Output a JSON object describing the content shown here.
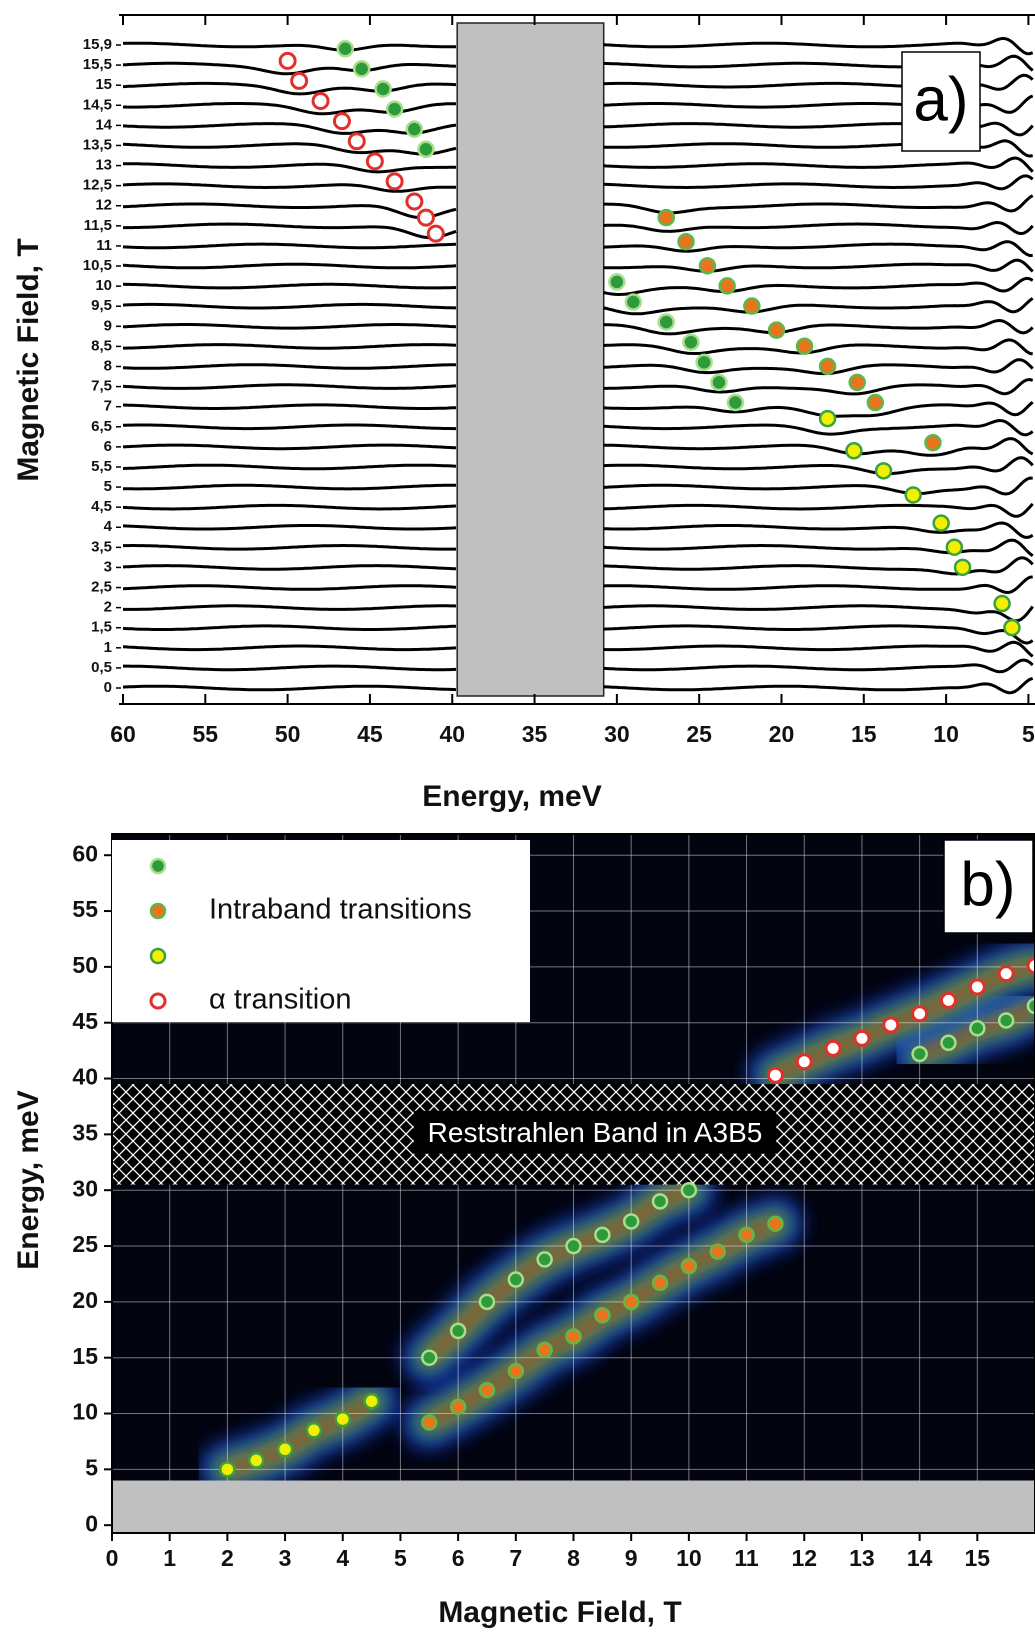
{
  "chart_data": [
    {
      "type": "waterfall",
      "annotation": "a)",
      "xlabel": "Energy, meV",
      "ylabel": "Magnetic Field, T",
      "categories": [
        "0",
        "0,5",
        "1",
        "1,5",
        "2",
        "2,5",
        "3",
        "3,5",
        "4",
        "4,5",
        "5",
        "5,5",
        "6",
        "6,5",
        "7",
        "7,5",
        "8",
        "8,5",
        "9",
        "9,5",
        "10",
        "10,5",
        "11",
        "11,5",
        "12",
        "12,5",
        "13",
        "13,5",
        "14",
        "14,5",
        "15",
        "15,5",
        "15,9"
      ],
      "xlim": [
        60,
        4.6
      ],
      "xticks": [
        60,
        55,
        50,
        45,
        40,
        35,
        30,
        25,
        20,
        15,
        10,
        5
      ],
      "ylim": [
        -0.4,
        16.74
      ],
      "gap": [
        39.7,
        30.8
      ],
      "series": [
        {
          "color": "#2e9a3c",
          "edge": "#a6e08c",
          "marker": "filled",
          "x": [
            46.5,
            45.5,
            44.2,
            43.5,
            42.3,
            41.6,
            30,
            29,
            27,
            25.5,
            24.7,
            23.8,
            22.8
          ],
          "values": [
            15.9,
            15.4,
            14.9,
            14.4,
            13.9,
            13.4,
            10.1,
            9.6,
            9.1,
            8.6,
            8.1,
            7.6,
            7.1
          ]
        },
        {
          "color": "#e8741e",
          "edge": "#5cb84a",
          "marker": "filled",
          "x": [
            27,
            25.8,
            24.5,
            23.3,
            21.8,
            20.3,
            18.6,
            17.2,
            15.4,
            14.3,
            10.8
          ],
          "values": [
            11.7,
            11.1,
            10.5,
            10,
            9.5,
            8.9,
            8.5,
            8,
            7.6,
            7.1,
            6.1
          ]
        },
        {
          "color": "#f2f000",
          "edge": "#3aa040",
          "marker": "filled",
          "x": [
            17.2,
            15.6,
            13.8,
            12,
            10.3,
            9.5,
            9,
            6.6,
            6
          ],
          "values": [
            6.7,
            5.9,
            5.4,
            4.8,
            4.1,
            3.5,
            3,
            2.1,
            1.5
          ]
        },
        {
          "color": "#ffffff",
          "edge": "#e0302a",
          "marker": "open",
          "x": [
            50,
            49.3,
            48,
            46.7,
            45.8,
            44.7,
            43.5,
            42.3,
            41.6,
            41
          ],
          "values": [
            15.6,
            15.1,
            14.6,
            14.1,
            13.6,
            13.1,
            12.6,
            12.1,
            11.7,
            11.3
          ]
        }
      ]
    },
    {
      "type": "scatter",
      "annotation": "b)",
      "xlabel": "Magnetic Field, T",
      "ylabel": "Energy, meV",
      "xlim": [
        0,
        16
      ],
      "ylim": [
        -0.7,
        61.9
      ],
      "xticks": [
        0,
        1,
        2,
        3,
        4,
        5,
        6,
        7,
        8,
        9,
        10,
        11,
        12,
        13,
        14,
        15
      ],
      "yticks": [
        0,
        5,
        10,
        15,
        20,
        25,
        30,
        35,
        40,
        45,
        50,
        55,
        60
      ],
      "grid": true,
      "band": {
        "label": "Reststrahlen Band in A3B5",
        "range": [
          30.5,
          39.5
        ]
      },
      "cutoff": 4,
      "series": [
        {
          "color": "#2e9a3c",
          "edge": "#a6e08c",
          "marker": "filled",
          "x": [
            5.5,
            6,
            6.5,
            7,
            7.5,
            8,
            8.5,
            9,
            9.5,
            10,
            14,
            14.5,
            15,
            15.5,
            16
          ],
          "values": [
            15,
            17.4,
            20,
            22,
            23.8,
            25,
            26,
            27.2,
            29,
            30,
            42.2,
            43.2,
            44.5,
            45.2,
            46.5
          ]
        },
        {
          "name": "Intraband transitions",
          "color": "#e8741e",
          "edge": "#5cb84a",
          "marker": "filled",
          "x": [
            5.5,
            6,
            6.5,
            7,
            7.5,
            8,
            8.5,
            9,
            9.5,
            10,
            10.5,
            11,
            11.5
          ],
          "values": [
            9.2,
            10.6,
            12.1,
            13.8,
            15.7,
            16.9,
            18.8,
            20,
            21.7,
            23.2,
            24.5,
            26,
            27
          ]
        },
        {
          "color": "#f2f000",
          "edge": "#3aa040",
          "marker": "filled",
          "x": [
            2,
            2.5,
            3,
            3.5,
            4,
            4.5
          ],
          "values": [
            5,
            5.8,
            6.8,
            8.5,
            9.5,
            11.1
          ]
        },
        {
          "name": "α transition",
          "color": "#ffffff",
          "edge": "#e0302a",
          "marker": "open",
          "x": [
            11.5,
            12,
            12.5,
            13,
            13.5,
            14,
            14.5,
            15,
            15.5,
            16
          ],
          "values": [
            40.3,
            41.5,
            42.7,
            43.6,
            44.8,
            45.8,
            47,
            48.2,
            49.4,
            50.1
          ]
        }
      ]
    }
  ]
}
